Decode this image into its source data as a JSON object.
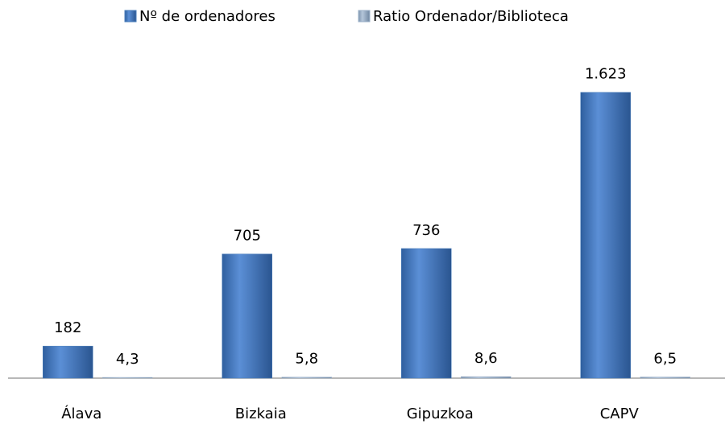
{
  "chart_data": {
    "type": "bar",
    "categories": [
      "Álava",
      "Bizkaia",
      "Gipuzkoa",
      "CAPV"
    ],
    "series": [
      {
        "name": "Nº de ordenadores",
        "color": "#4a7ebb",
        "values": [
          182,
          705,
          736,
          1623
        ],
        "value_labels": [
          "182",
          "705",
          "736",
          "1.623"
        ]
      },
      {
        "name": "Ratio Ordenador/Biblioteca",
        "color": "#9bb0c8",
        "values": [
          4.3,
          5.8,
          8.6,
          6.5
        ],
        "value_labels": [
          "4,3",
          "5,8",
          "8,6",
          "6,5"
        ]
      }
    ],
    "ylim": [
      0,
      1800
    ],
    "legend": "top"
  }
}
